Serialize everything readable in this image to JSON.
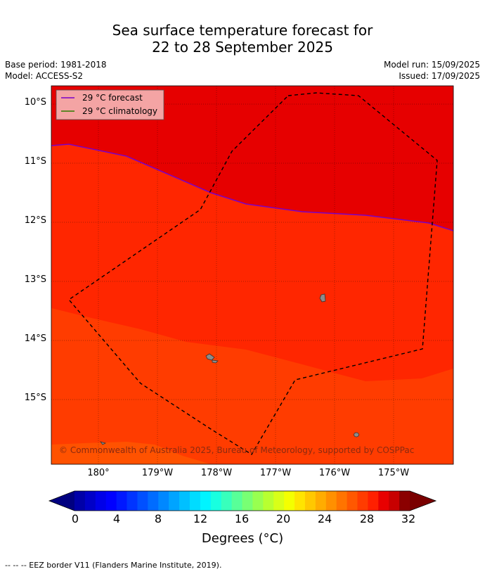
{
  "title_line1": "Sea surface temperature forecast for",
  "title_line2": "22 to 28 September 2025",
  "base_period": "Base period: 1981-2018",
  "model": "Model: ACCESS-S2",
  "model_run": "Model run: 15/09/2025",
  "issued": "Issued: 17/09/2025",
  "legend": {
    "forecast_label": "29 °C  forecast",
    "climatology_label": "29 °C  climatology",
    "forecast_color": "#7a00c8",
    "climatology_color": "#2e7d00"
  },
  "lat_labels": [
    "10°S",
    "11°S",
    "12°S",
    "13°S",
    "14°S",
    "15°S"
  ],
  "lon_labels": [
    "180°",
    "179°W",
    "178°W",
    "177°W",
    "176°W",
    "175°W"
  ],
  "colorbar": {
    "tick_labels": [
      "0",
      "4",
      "8",
      "12",
      "16",
      "20",
      "24",
      "28",
      "32"
    ],
    "title": "Degrees (°C)",
    "colors": [
      "#0000a8",
      "#0000c8",
      "#0000e8",
      "#0000ff",
      "#0018ff",
      "#0034ff",
      "#0050ff",
      "#006cff",
      "#0088ff",
      "#00a4ff",
      "#00c0ff",
      "#00dcff",
      "#00f4ff",
      "#18ffe0",
      "#38ffbc",
      "#58ff98",
      "#78ff74",
      "#98ff50",
      "#b8ff30",
      "#d8ff18",
      "#f4ff00",
      "#ffe400",
      "#ffc800",
      "#ffac00",
      "#ff9000",
      "#ff7400",
      "#ff5800",
      "#ff3c00",
      "#ff2000",
      "#e80000",
      "#c80000",
      "#8b0000"
    ],
    "under_color": "#000080",
    "over_color": "#7a0000"
  },
  "map_colors": {
    "above_29": "#e60000",
    "band_28": "#ff2600",
    "band_27": "#ff3c00",
    "band_26": "#ff5200"
  },
  "copyright": "© Commonwealth of Australia 2025, Bureau of Meteorology, supported by COSPPac",
  "footer": "--  --  -- EEZ border V11 (Flanders Marine Institute, 2019)."
}
